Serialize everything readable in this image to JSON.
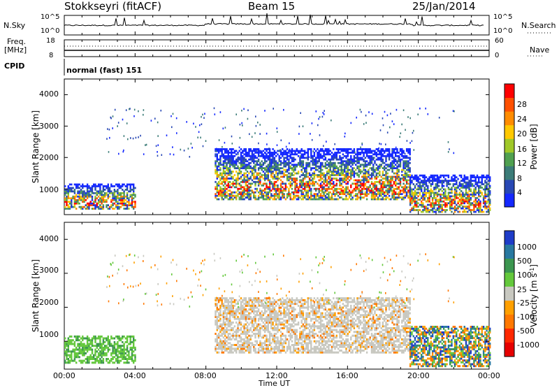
{
  "header": {
    "station": "Stokkseyri (fitACF)",
    "beam": "Beam 15",
    "date": "25/Jan/2014"
  },
  "summary": {
    "nsky_label": "N.Sky",
    "nsearch_label": "N.Search",
    "nsky_ticks": [
      "10^5",
      "10^0"
    ],
    "nsearch_ticks": [
      "10^5",
      "10^0"
    ],
    "freq_label": "Freq.",
    "freq_unit": "[MHz]",
    "freq_ticks": [
      "18",
      "8"
    ],
    "nave_label": "Nave",
    "nave_ticks": [
      "60",
      "0"
    ],
    "cpid_label": "CPID",
    "cpid_value": "normal (fast) 151"
  },
  "chart_data": [
    {
      "type": "heatmap",
      "name": "power",
      "ylabel": "Slant Range [km]",
      "y_ticks": [
        "1000",
        "2000",
        "3000",
        "4000"
      ],
      "ylim": [
        180,
        4500
      ],
      "colorbar_label": "Power [dB]",
      "colorbar_ticks": [
        "4",
        "8",
        "12",
        "16",
        "20",
        "24",
        "28"
      ],
      "colorbar_range": [
        0,
        30
      ],
      "colors": [
        "#1428ff",
        "#2848b4",
        "#3c7c78",
        "#50a050",
        "#a0c828",
        "#ffc800",
        "#ff8c00",
        "#ff5000",
        "#ff0000"
      ],
      "echo_regions_approx": [
        {
          "t_hours": [
            0,
            4
          ],
          "range_km": [
            400,
            1200
          ],
          "power_db": [
            4,
            28
          ]
        },
        {
          "t_hours": [
            8.5,
            19.5
          ],
          "range_km": [
            700,
            2300
          ],
          "power_db": [
            4,
            30
          ]
        },
        {
          "t_hours": [
            19.5,
            24
          ],
          "range_km": [
            300,
            1500
          ],
          "power_db": [
            4,
            30
          ]
        }
      ]
    },
    {
      "type": "heatmap",
      "name": "velocity",
      "ylabel": "Slant Range [km]",
      "xlabel": "Time UT",
      "x_ticks": [
        "00:00",
        "04:00",
        "08:00",
        "12:00",
        "16:00",
        "20:00",
        "00:00"
      ],
      "y_ticks": [
        "1000",
        "2000",
        "3000",
        "4000"
      ],
      "ylim": [
        180,
        4500
      ],
      "colorbar_label": "Velocity [m s^-1]",
      "colorbar_ticks": [
        "1000",
        "500",
        "100",
        "25",
        "-25",
        "-100",
        "-500",
        "-1000"
      ],
      "colorbar_levels": [
        1000,
        500,
        100,
        25,
        -25,
        -100,
        -500,
        -1000
      ],
      "colors": [
        "#1e3cc8",
        "#2878a0",
        "#3c9650",
        "#64c83c",
        "#c8c8c0",
        "#ffa000",
        "#ff7800",
        "#ff2800",
        "#e60000"
      ],
      "echo_regions_approx": [
        {
          "t_hours": [
            0,
            4
          ],
          "range_km": [
            400,
            1200
          ],
          "velocity_ms": [
            25,
            500
          ]
        },
        {
          "t_hours": [
            8.5,
            19.5
          ],
          "range_km": [
            700,
            2300
          ],
          "velocity_ms": [
            -25,
            25
          ]
        },
        {
          "t_hours": [
            19.5,
            24
          ],
          "range_km": [
            300,
            1500
          ],
          "velocity_ms": [
            -500,
            500
          ]
        }
      ]
    }
  ]
}
